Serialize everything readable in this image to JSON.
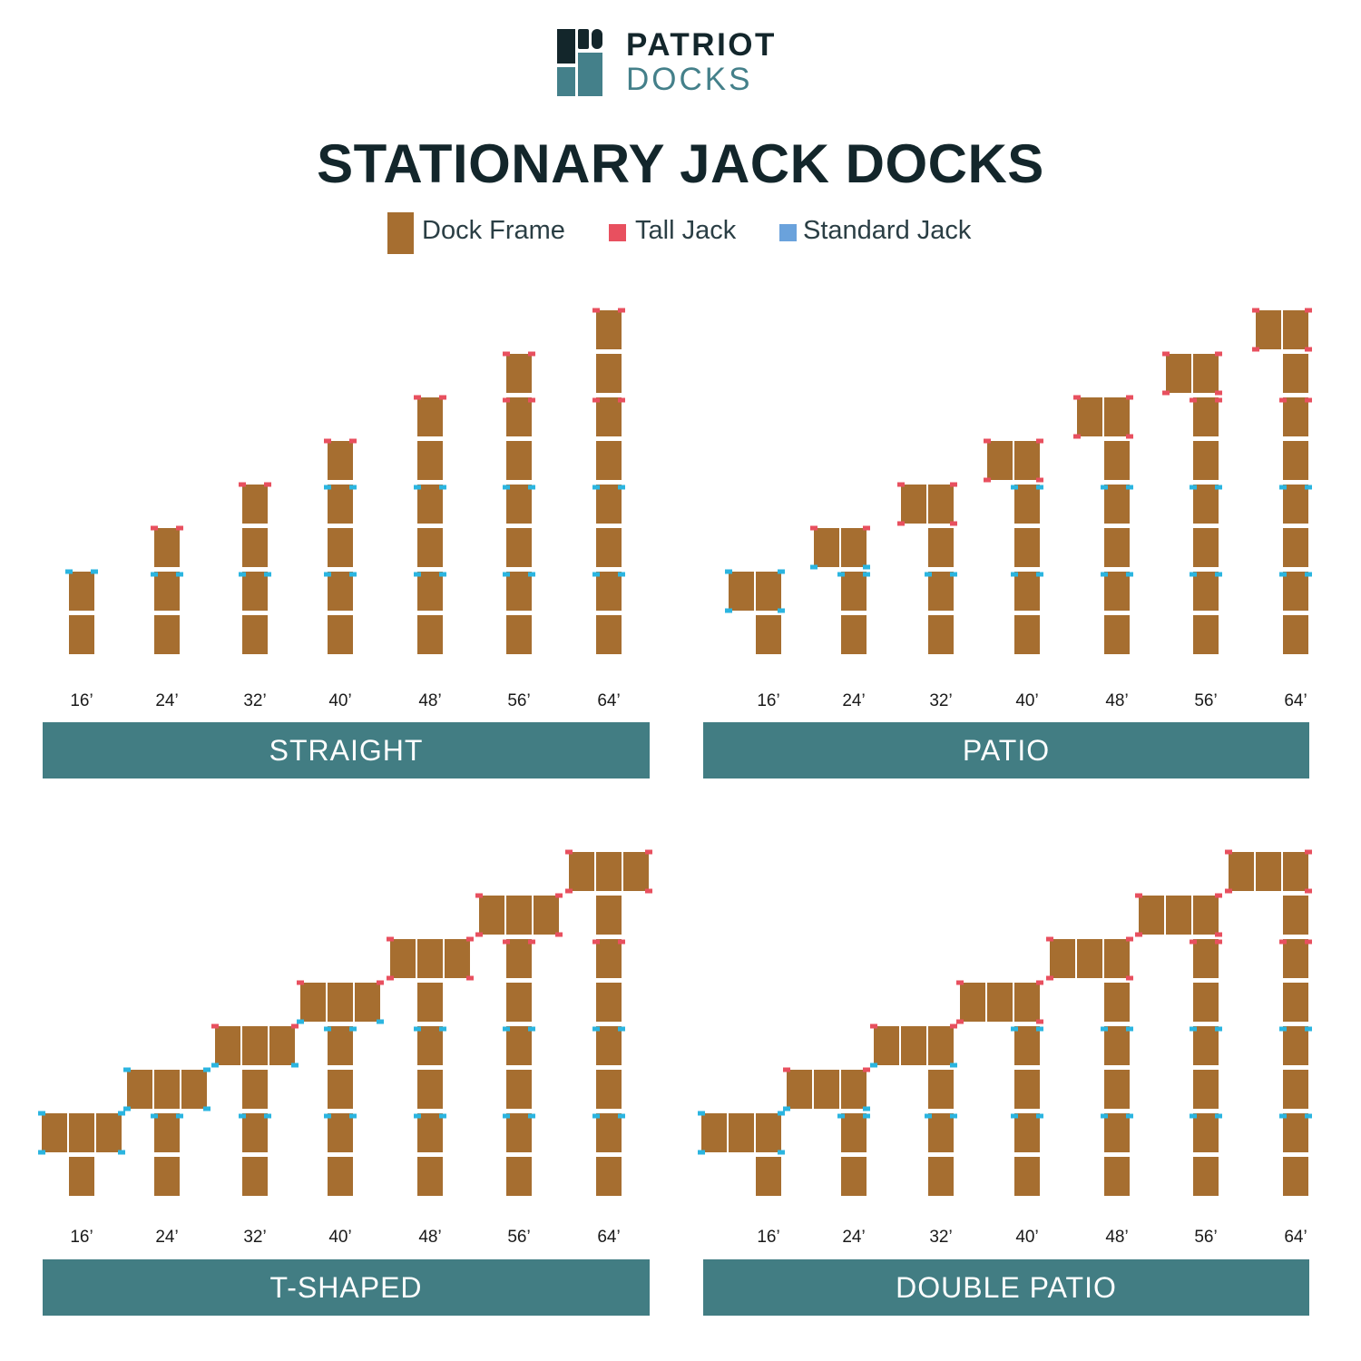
{
  "logo": {
    "line1": "PATRIOT",
    "line2": "DOCKS",
    "primary_color": "#13262b",
    "secondary_color": "#44808a"
  },
  "title": "STATIONARY JACK DOCKS",
  "legend": {
    "frame": "Dock Frame",
    "tall": "Tall Jack",
    "standard": "Standard Jack",
    "frame_color": "#a66e30",
    "tall_color": "#e8505f",
    "standard_color": "#6aa2dc",
    "standard_marker_color": "#2bb5e0"
  },
  "colors": {
    "banner": "#427d83"
  },
  "sizes": [
    "16’",
    "24’",
    "32’",
    "40’",
    "48’",
    "56’",
    "64’"
  ],
  "panels": [
    {
      "id": "straight",
      "label": "STRAIGHT"
    },
    {
      "id": "patio",
      "label": "PATIO"
    },
    {
      "id": "tshaped",
      "label": "T-SHAPED"
    },
    {
      "id": "doublepatio",
      "label": "DOUBLE PATIO"
    }
  ]
}
